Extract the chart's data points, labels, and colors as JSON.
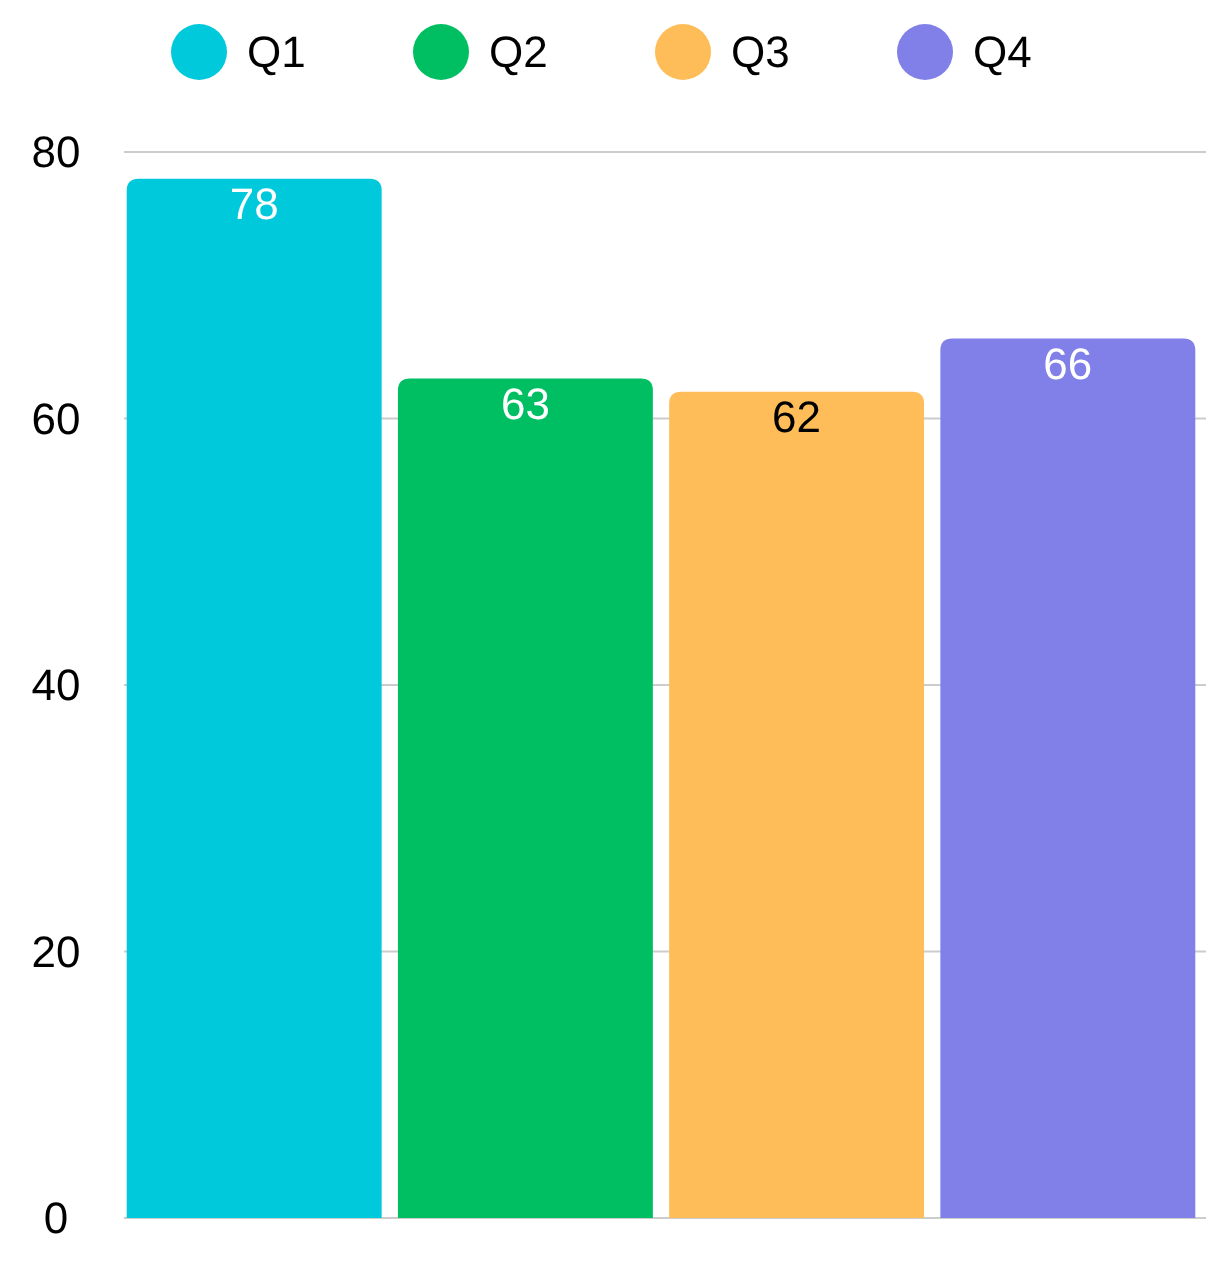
{
  "chart_data": {
    "type": "bar",
    "categories": [
      null
    ],
    "series": [
      {
        "name": "Q1",
        "color": "#00c9db",
        "values": [
          78
        ]
      },
      {
        "name": "Q2",
        "color": "#00bf63",
        "values": [
          63
        ]
      },
      {
        "name": "Q3",
        "color": "#ffbd59",
        "values": [
          62
        ]
      },
      {
        "name": "Q4",
        "color": "#8080e8",
        "values": [
          66
        ]
      }
    ],
    "ylim": [
      0,
      80
    ],
    "yticks": [
      0,
      20,
      40,
      60,
      80
    ],
    "grid": "y",
    "legend": "top",
    "data_labels": true
  }
}
